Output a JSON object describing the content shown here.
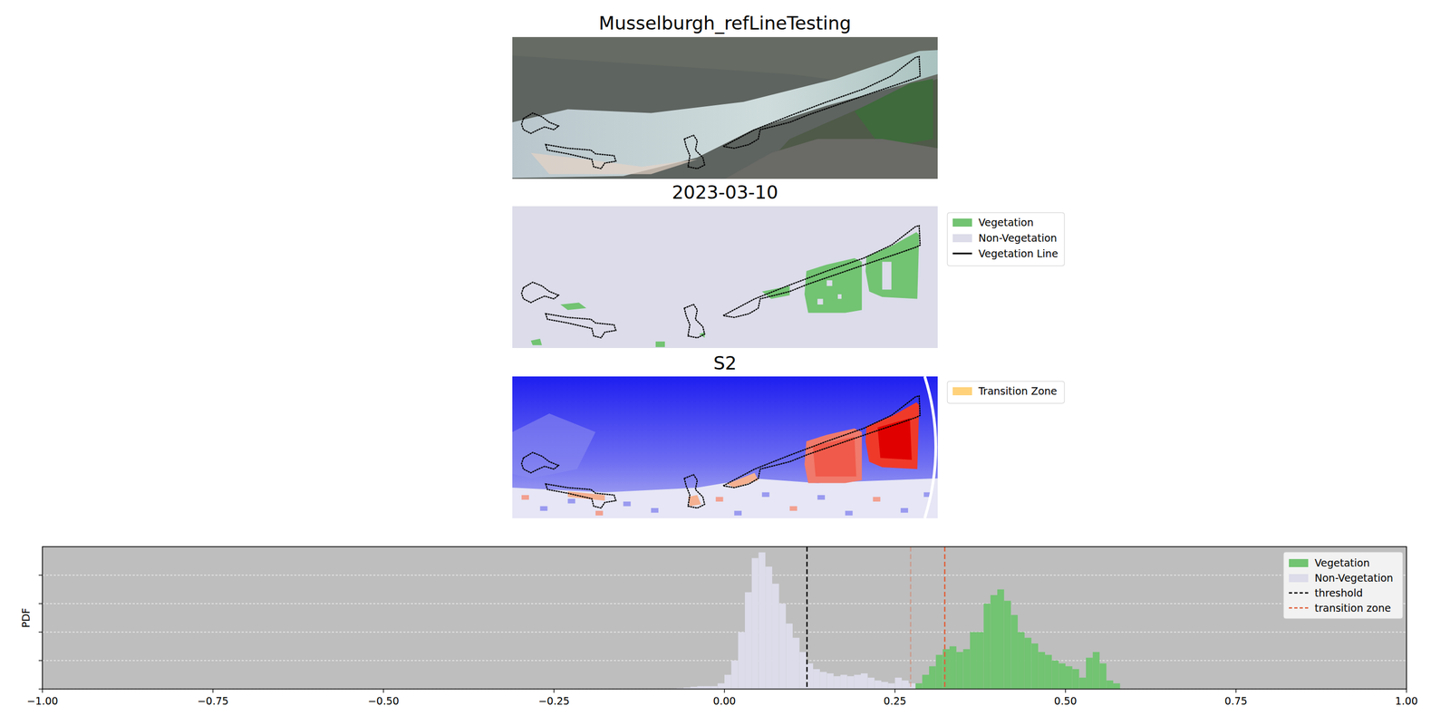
{
  "chart_data": {
    "type": "histogram",
    "panels": [
      {
        "title": "Musselburgh_refLineTesting"
      },
      {
        "title": "2023-03-10",
        "legend": [
          {
            "name": "Vegetation",
            "color": "#72c372"
          },
          {
            "name": "Non-Vegetation",
            "color": "#dcdcea"
          },
          {
            "name": "Vegetation Line",
            "color": "#000000"
          }
        ]
      },
      {
        "title": "S2",
        "legend": [
          {
            "name": "Transition Zone",
            "color": "#ffd27a"
          }
        ]
      }
    ],
    "ylabel": "PDF",
    "xlim": [
      -1,
      1
    ],
    "xticks": [
      {
        "value": -1,
        "label": "−1.00"
      },
      {
        "value": -0.75,
        "label": "−0.75"
      },
      {
        "value": -0.5,
        "label": "−0.50"
      },
      {
        "value": -0.25,
        "label": "−0.25"
      },
      {
        "value": 0,
        "label": "0.00"
      },
      {
        "value": 0.25,
        "label": "0.25"
      },
      {
        "value": 0.5,
        "label": "0.50"
      },
      {
        "value": 0.75,
        "label": "0.75"
      },
      {
        "value": 1,
        "label": "1.00"
      }
    ],
    "ylim": [
      0,
      5
    ],
    "yticks": [
      0,
      1,
      2,
      3,
      4
    ],
    "tick_labels": "x",
    "grid": true,
    "legend": "upper right",
    "series": [
      {
        "name": "Vegetation",
        "color": "#72c372",
        "bins": [
          0.28,
          0.29,
          0.3,
          0.31,
          0.32,
          0.33,
          0.34,
          0.35,
          0.36,
          0.37,
          0.38,
          0.39,
          0.4,
          0.41,
          0.42,
          0.43,
          0.44,
          0.45,
          0.46,
          0.47,
          0.48,
          0.49,
          0.5,
          0.51,
          0.52,
          0.53,
          0.54,
          0.55,
          0.56,
          0.57,
          0.58
        ],
        "values": [
          0.2,
          0.5,
          0.8,
          1.2,
          1.4,
          1.5,
          1.3,
          1.4,
          2.0,
          2.0,
          3.0,
          3.3,
          3.5,
          3.1,
          2.6,
          2.0,
          1.8,
          1.6,
          1.3,
          1.2,
          1.0,
          0.9,
          0.8,
          0.7,
          0.4,
          1.1,
          1.3,
          0.9,
          0.3,
          0.2
        ]
      },
      {
        "name": "Non-Vegetation",
        "color": "#dcdcea",
        "bins": [
          -0.08,
          -0.07,
          -0.06,
          -0.05,
          -0.04,
          -0.03,
          -0.02,
          -0.01,
          0,
          0.01,
          0.02,
          0.03,
          0.04,
          0.05,
          0.06,
          0.07,
          0.08,
          0.09,
          0.1,
          0.11,
          0.12,
          0.13,
          0.14,
          0.15,
          0.16,
          0.17,
          0.18,
          0.19,
          0.2,
          0.21,
          0.22,
          0.23,
          0.24,
          0.25,
          0.26,
          0.27,
          0.28
        ],
        "values": [
          0.02,
          0.03,
          0.05,
          0.08,
          0.1,
          0.1,
          0.1,
          0.2,
          0.5,
          1.0,
          2.0,
          3.4,
          4.6,
          4.8,
          4.3,
          3.7,
          3.0,
          2.3,
          1.8,
          1.3,
          0.9,
          0.7,
          0.6,
          0.55,
          0.45,
          0.5,
          0.45,
          0.5,
          0.55,
          0.4,
          0.3,
          0.25,
          0.2,
          0.4,
          0.3,
          0.2
        ]
      }
    ],
    "lines": [
      {
        "name": "threshold",
        "value": 0.121,
        "color": "#000000",
        "line_style": "dashed"
      },
      {
        "name": "transition zone",
        "values": [
          0.273,
          0.323
        ],
        "color": "#e0603a",
        "line_style": "dashed"
      }
    ]
  }
}
